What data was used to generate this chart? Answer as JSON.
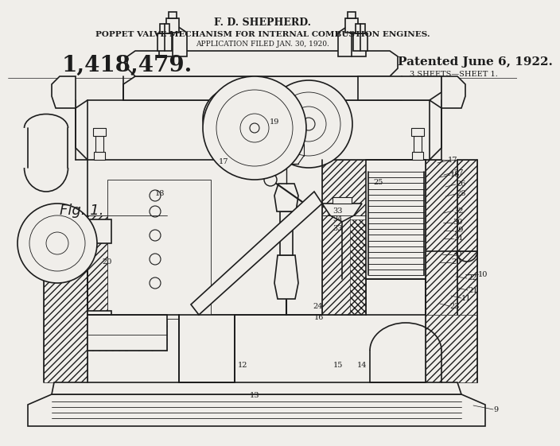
{
  "title_line1": "F. D. SHEPHERD.",
  "title_line2": "POPPET VALVE MECHANISM FOR INTERNAL COMBUSTION ENGINES.",
  "title_line3": "APPLICATION FILED JAN. 30, 1920.",
  "patent_number": "1,418,479.",
  "patent_date": "Patented June 6, 1922.",
  "sheet_info": "3 SHEETS—SHEET 1.",
  "fig_label": "Fig. 1.",
  "bg_color": "#f0eeea",
  "line_color": "#1c1c1c",
  "lw_main": 1.2,
  "lw_thin": 0.6,
  "lw_thick": 2.0
}
